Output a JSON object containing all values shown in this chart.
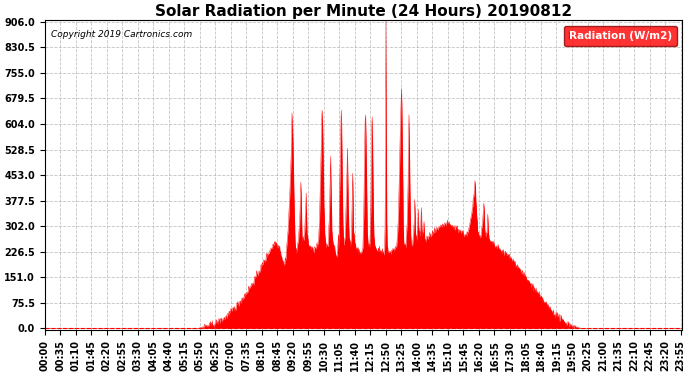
{
  "title": "Solar Radiation per Minute (24 Hours) 20190812",
  "ylabel": "Radiation (W/m2)",
  "copyright_text": "Copyright 2019 Cartronics.com",
  "yticks": [
    0.0,
    75.5,
    151.0,
    226.5,
    302.0,
    377.5,
    453.0,
    528.5,
    604.0,
    679.5,
    755.0,
    830.5,
    906.0
  ],
  "ymin": 0.0,
  "ymax": 906.0,
  "fill_color": "#ff0000",
  "line_color": "#ff0000",
  "background_color": "#ffffff",
  "grid_color": "#aaaaaa",
  "title_fontsize": 11,
  "tick_fontsize": 7,
  "tick_interval_minutes": 35,
  "sunrise_minute": 350,
  "sunset_minute": 1210
}
